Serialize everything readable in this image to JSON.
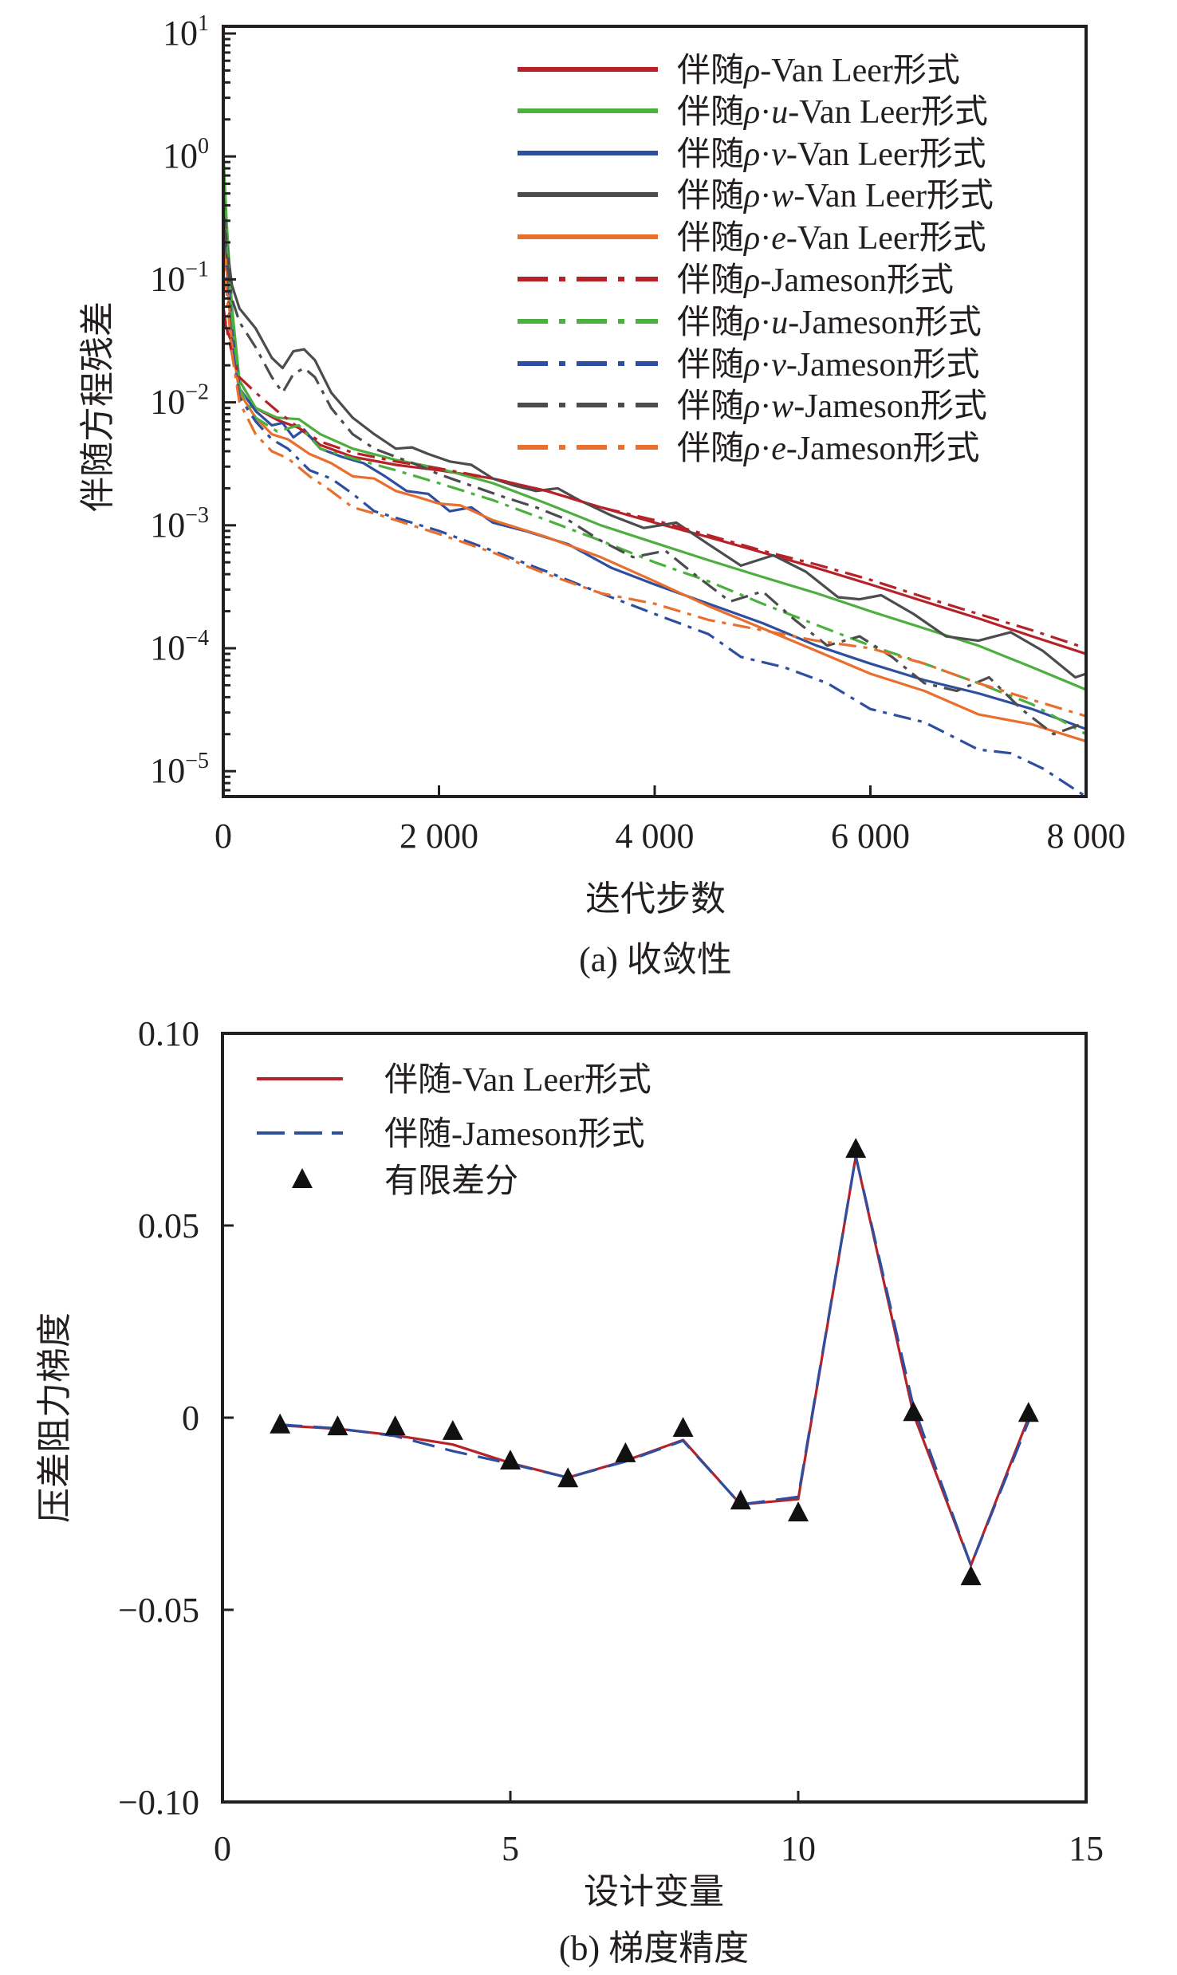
{
  "chart_data": [
    {
      "id": "a",
      "type": "line",
      "caption": "(a) 收敛性",
      "xlabel": "迭代步数",
      "ylabel": "伴随方程残差",
      "xscale": "linear",
      "yscale": "log",
      "xlim": [
        0,
        8000
      ],
      "ylim": [
        6.2e-06,
        10
      ],
      "xticks": [
        0,
        2000,
        4000,
        6000,
        8000
      ],
      "xtick_labels": [
        "0",
        "2 000",
        "4 000",
        "6 000",
        "8 000"
      ],
      "yticks": [
        10,
        1,
        0.1,
        0.01,
        0.001,
        0.0001,
        1e-05
      ],
      "ytick_labels": [
        {
          "base": "10",
          "exp": "1"
        },
        {
          "base": "10",
          "exp": "0"
        },
        {
          "base": "10",
          "exp": "−1"
        },
        {
          "base": "10",
          "exp": "−2"
        },
        {
          "base": "10",
          "exp": "−3"
        },
        {
          "base": "10",
          "exp": "−4"
        },
        {
          "base": "10",
          "exp": "−5"
        }
      ],
      "grid": false,
      "legend_position": "top-right",
      "series": [
        {
          "name": "伴随ρ-Van Leer形式",
          "prefix": "伴随",
          "var": "ρ",
          "comp": "",
          "suffix": "-Van Leer形式",
          "color": "#b72229",
          "style": "solid",
          "x": [
            0,
            30,
            80,
            150,
            300,
            500,
            700,
            900,
            1200,
            1600,
            2000,
            2500,
            3000,
            3500,
            4000,
            4500,
            5000,
            5500,
            6000,
            6500,
            7000,
            7500,
            8000
          ],
          "y": [
            0.05,
            0.04,
            0.03,
            0.015,
            0.009,
            0.0072,
            0.0062,
            0.0045,
            0.0036,
            0.0031,
            0.0028,
            0.0024,
            0.0019,
            0.0014,
            0.00105,
            0.0008,
            0.0006,
            0.00045,
            0.00033,
            0.00024,
            0.000175,
            0.000125,
            9e-05
          ]
        },
        {
          "name": "伴随ρ·u-Van Leer形式",
          "prefix": "伴随",
          "var": "ρ",
          "comp": "u",
          "suffix": "-Van Leer形式",
          "color": "#4daf3f",
          "style": "solid",
          "x": [
            0,
            30,
            80,
            150,
            300,
            500,
            700,
            900,
            1200,
            1600,
            2000,
            2500,
            3000,
            3500,
            4000,
            4500,
            5000,
            5500,
            6000,
            6500,
            7000,
            7500,
            8000
          ],
          "y": [
            1.1,
            0.3,
            0.06,
            0.015,
            0.009,
            0.0075,
            0.0073,
            0.0055,
            0.0042,
            0.0034,
            0.0029,
            0.0022,
            0.0015,
            0.001,
            0.00072,
            0.00052,
            0.00038,
            0.00028,
            0.0002,
            0.000145,
            0.000105,
            7e-05,
            4.6e-05
          ]
        },
        {
          "name": "伴随ρ·v-Van Leer形式",
          "prefix": "伴随",
          "var": "ρ",
          "comp": "v",
          "suffix": "-Van Leer形式",
          "color": "#2e4ea0",
          "style": "solid",
          "x": [
            0,
            30,
            80,
            150,
            300,
            450,
            550,
            650,
            750,
            900,
            1100,
            1300,
            1500,
            1700,
            1900,
            2100,
            2300,
            2500,
            2800,
            3200,
            3600,
            4000,
            4500,
            5000,
            5500,
            6000,
            6500,
            7000,
            7500,
            8000
          ],
          "y": [
            0.5,
            0.15,
            0.04,
            0.013,
            0.0085,
            0.0065,
            0.0068,
            0.0052,
            0.006,
            0.0042,
            0.0036,
            0.0032,
            0.0025,
            0.0019,
            0.0018,
            0.0013,
            0.0014,
            0.00105,
            0.0009,
            0.0007,
            0.00045,
            0.00033,
            0.00023,
            0.00016,
            0.000105,
            7.5e-05,
            5.5e-05,
            4.3e-05,
            3.2e-05,
            2.2e-05
          ]
        },
        {
          "name": "伴随ρ·w-Van Leer形式",
          "prefix": "伴随",
          "var": "ρ",
          "comp": "w",
          "suffix": "-Van Leer形式",
          "color": "#4b4c4e",
          "style": "solid",
          "x": [
            0,
            30,
            80,
            150,
            300,
            450,
            550,
            650,
            750,
            850,
            1000,
            1200,
            1400,
            1600,
            1750,
            1900,
            2100,
            2300,
            2500,
            2700,
            2900,
            3100,
            3300,
            3600,
            3900,
            4200,
            4500,
            4800,
            5100,
            5400,
            5700,
            5900,
            6100,
            6400,
            6700,
            7000,
            7300,
            7600,
            7900,
            8000
          ],
          "y": [
            0.5,
            0.2,
            0.09,
            0.058,
            0.04,
            0.023,
            0.019,
            0.026,
            0.027,
            0.022,
            0.012,
            0.0075,
            0.0055,
            0.0042,
            0.0043,
            0.0038,
            0.0033,
            0.0031,
            0.0024,
            0.0021,
            0.0019,
            0.002,
            0.0016,
            0.0012,
            0.00095,
            0.00105,
            0.0007,
            0.00047,
            0.00057,
            0.00042,
            0.00026,
            0.00025,
            0.00027,
            0.00019,
            0.000125,
            0.000115,
            0.000135,
            9.5e-05,
            5.8e-05,
            6.2e-05
          ]
        },
        {
          "name": "伴随ρ·e-Van Leer形式",
          "prefix": "伴随",
          "var": "ρ",
          "comp": "e",
          "suffix": "-Van Leer形式",
          "color": "#e86f2d",
          "style": "solid",
          "x": [
            0,
            30,
            80,
            150,
            300,
            450,
            600,
            800,
            1000,
            1200,
            1400,
            1600,
            1800,
            2000,
            2200,
            2500,
            3000,
            3500,
            4000,
            4500,
            5000,
            5500,
            6000,
            6500,
            7000,
            7500,
            8000
          ],
          "y": [
            0.3,
            0.12,
            0.03,
            0.012,
            0.0075,
            0.0055,
            0.005,
            0.0038,
            0.0032,
            0.0025,
            0.0024,
            0.0019,
            0.0017,
            0.0015,
            0.00145,
            0.0011,
            0.0008,
            0.00055,
            0.00035,
            0.00022,
            0.000145,
            9.5e-05,
            6.2e-05,
            4.5e-05,
            2.9e-05,
            2.4e-05,
            1.75e-05
          ]
        },
        {
          "name": "伴随ρ-Jameson形式",
          "prefix": "伴随",
          "var": "ρ",
          "comp": "",
          "suffix": "-Jameson形式",
          "color": "#b72229",
          "style": "dashdot",
          "x": [
            0,
            30,
            80,
            150,
            300,
            500,
            700,
            900,
            1200,
            1600,
            2000,
            2500,
            3000,
            3500,
            4000,
            4500,
            5000,
            5500,
            6000,
            6500,
            7000,
            7500,
            8000
          ],
          "y": [
            0.06,
            0.04,
            0.025,
            0.016,
            0.012,
            0.0085,
            0.0062,
            0.0048,
            0.0039,
            0.0033,
            0.0029,
            0.0024,
            0.0019,
            0.0014,
            0.0011,
            0.00083,
            0.00062,
            0.00048,
            0.00036,
            0.00026,
            0.00019,
            0.00014,
            0.0001
          ]
        },
        {
          "name": "伴随ρ·u-Jameson形式",
          "prefix": "伴随",
          "var": "ρ",
          "comp": "u",
          "suffix": "-Jameson形式",
          "color": "#4daf3f",
          "style": "dashdot",
          "x": [
            0,
            30,
            80,
            150,
            300,
            500,
            700,
            900,
            1200,
            1600,
            2000,
            2500,
            3000,
            3500,
            4000,
            4500,
            5000,
            5500,
            6000,
            6500,
            7000,
            7500,
            8000
          ],
          "y": [
            0.8,
            0.2,
            0.05,
            0.013,
            0.0075,
            0.0058,
            0.0065,
            0.0042,
            0.0035,
            0.0028,
            0.0022,
            0.0016,
            0.0011,
            0.00075,
            0.0005,
            0.00035,
            0.00023,
            0.000155,
            0.000105,
            7.5e-05,
            5.2e-05,
            3.5e-05,
            2e-05
          ]
        },
        {
          "name": "伴随ρ·v-Jameson形式",
          "prefix": "伴随",
          "var": "ρ",
          "comp": "v",
          "suffix": "-Jameson形式",
          "color": "#2e4ea0",
          "style": "dashdot",
          "x": [
            0,
            30,
            80,
            150,
            300,
            450,
            600,
            800,
            1000,
            1200,
            1400,
            1600,
            2000,
            2500,
            3000,
            3500,
            4000,
            4500,
            4800,
            5200,
            5600,
            6000,
            6500,
            7000,
            7300,
            7600,
            8000
          ],
          "y": [
            0.4,
            0.1,
            0.03,
            0.011,
            0.007,
            0.005,
            0.0042,
            0.0028,
            0.0024,
            0.0018,
            0.0013,
            0.00115,
            0.0009,
            0.00062,
            0.00042,
            0.00028,
            0.00019,
            0.00013,
            8.5e-05,
            7e-05,
            5.2e-05,
            3.2e-05,
            2.5e-05,
            1.5e-05,
            1.4e-05,
            1.05e-05,
            6.2e-06
          ]
        },
        {
          "name": "伴随ρ·w-Jameson形式",
          "prefix": "伴随",
          "var": "ρ",
          "comp": "w",
          "suffix": "-Jameson形式",
          "color": "#4b4c4e",
          "style": "dashdot",
          "x": [
            0,
            30,
            80,
            150,
            300,
            450,
            550,
            650,
            750,
            850,
            1000,
            1200,
            1400,
            1600,
            1800,
            2000,
            2300,
            2600,
            2900,
            3200,
            3500,
            3800,
            4100,
            4400,
            4700,
            5000,
            5300,
            5600,
            5900,
            6200,
            6500,
            6800,
            7100,
            7400,
            7700,
            8000
          ],
          "y": [
            0.5,
            0.15,
            0.07,
            0.045,
            0.028,
            0.016,
            0.012,
            0.017,
            0.019,
            0.016,
            0.009,
            0.0055,
            0.0042,
            0.0036,
            0.0031,
            0.0026,
            0.0021,
            0.0017,
            0.0014,
            0.0011,
            0.00075,
            0.00055,
            0.00062,
            0.00038,
            0.00024,
            0.00029,
            0.00017,
            0.000105,
            0.000125,
            8.5e-05,
            5.2e-05,
            4.5e-05,
            5.8e-05,
            3.2e-05,
            2e-05,
            2.5e-05
          ]
        },
        {
          "name": "伴随ρ·e-Jameson形式",
          "prefix": "伴随",
          "var": "ρ",
          "comp": "e",
          "suffix": "-Jameson形式",
          "color": "#e86f2d",
          "style": "dashdot",
          "x": [
            0,
            30,
            80,
            150,
            300,
            450,
            600,
            800,
            1000,
            1200,
            1400,
            1600,
            2000,
            2500,
            3000,
            3500,
            4000,
            4500,
            5000,
            5500,
            6000,
            6500,
            7000,
            7500,
            8000
          ],
          "y": [
            0.2,
            0.08,
            0.025,
            0.01,
            0.0055,
            0.004,
            0.0035,
            0.0025,
            0.0019,
            0.0014,
            0.00125,
            0.0011,
            0.00085,
            0.0006,
            0.0004,
            0.00028,
            0.00023,
            0.00017,
            0.00014,
            0.000115,
            0.0001,
            7.5e-05,
            5.2e-05,
            3.8e-05,
            2.8e-05
          ]
        }
      ]
    },
    {
      "id": "b",
      "type": "line",
      "caption": "(b) 梯度精度",
      "xlabel": "设计变量",
      "ylabel": "压差阻力梯度",
      "xlim": [
        0,
        15
      ],
      "ylim": [
        -0.1,
        0.1
      ],
      "xticks": [
        0,
        5,
        10,
        15
      ],
      "xtick_labels": [
        "0",
        "5",
        "10",
        "15"
      ],
      "yticks": [
        0.1,
        0.05,
        0,
        -0.05,
        -0.1
      ],
      "ytick_labels": [
        "0.10",
        "0.05",
        "0",
        "−0.05",
        "−0.10"
      ],
      "grid": false,
      "legend_position": "top-left",
      "series": [
        {
          "name": "伴随-Van Leer形式",
          "color": "#b72229",
          "style": "solid",
          "x": [
            1,
            2,
            3,
            4,
            5,
            6,
            7,
            8,
            9,
            10,
            11,
            12,
            13,
            14
          ],
          "y": [
            -0.002,
            -0.0029,
            -0.0046,
            -0.007,
            -0.0118,
            -0.0156,
            -0.0112,
            -0.0058,
            -0.0226,
            -0.0212,
            0.068,
            0.001,
            -0.0384,
            0.0
          ]
        },
        {
          "name": "伴随-Jameson形式",
          "color": "#2e4ea0",
          "style": "dashed",
          "x": [
            1,
            2,
            3,
            4,
            5,
            6,
            7,
            8,
            9,
            10,
            11,
            12,
            13,
            14
          ],
          "y": [
            -0.0018,
            -0.0028,
            -0.0048,
            -0.0087,
            -0.012,
            -0.0156,
            -0.0114,
            -0.006,
            -0.0226,
            -0.0206,
            0.068,
            0.003,
            -0.0384,
            -0.001
          ]
        },
        {
          "name": "有限差分",
          "color": "#111111",
          "style": "marker-triangle",
          "x": [
            1,
            2,
            3,
            4,
            5,
            6,
            7,
            8,
            9,
            10,
            11,
            12,
            13,
            14
          ],
          "y": [
            -0.002,
            -0.0025,
            -0.0025,
            -0.0037,
            -0.0114,
            -0.016,
            -0.0095,
            -0.0029,
            -0.0218,
            -0.0249,
            0.0697,
            0.0012,
            -0.0415,
            0.001
          ]
        }
      ]
    }
  ]
}
